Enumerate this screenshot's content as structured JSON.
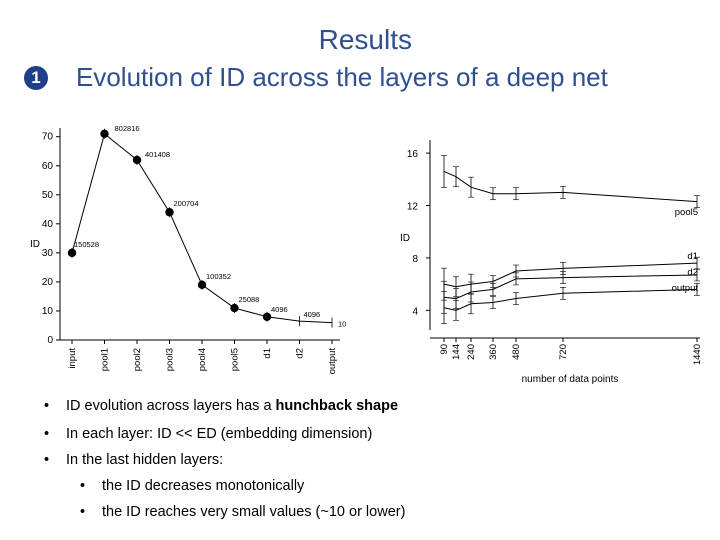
{
  "header": {
    "title": "Results",
    "section_number": "1",
    "subtitle": "Evolution of ID across the layers of a deep net"
  },
  "colors": {
    "title": "#2f4f8f",
    "badge": "#1f3f88"
  },
  "chart_data": [
    {
      "type": "line",
      "xlabel": "",
      "ylabel": "ID",
      "categories": [
        "input",
        "pool1",
        "pool2",
        "pool3",
        "pool4",
        "pool5",
        "d1",
        "d2",
        "output"
      ],
      "values": [
        30,
        71,
        62,
        44,
        19,
        11,
        8,
        6.5,
        6
      ],
      "point_labels": [
        "150528",
        "802816",
        "401408",
        "200704",
        "100352",
        "25088",
        "4096",
        "4096",
        "10"
      ],
      "markers": [
        true,
        true,
        true,
        true,
        true,
        true,
        true,
        false,
        false
      ],
      "yticks": [
        0,
        10,
        20,
        30,
        40,
        50,
        60,
        70
      ],
      "ylim": [
        0,
        73
      ],
      "grid": false
    },
    {
      "type": "line",
      "xlabel": "number of data points",
      "ylabel": "ID",
      "xticks": [
        90,
        144,
        240,
        360,
        480,
        720,
        1440
      ],
      "yticks": [
        4,
        8,
        12,
        16
      ],
      "ylim": [
        2.5,
        17
      ],
      "grid": false,
      "series": [
        {
          "name": "pool5",
          "x": [
            90,
            144,
            240,
            360,
            480,
            720,
            1440
          ],
          "y": [
            14.6,
            14.2,
            13.4,
            12.9,
            12.9,
            13.0,
            12.3
          ]
        },
        {
          "name": "d1",
          "x": [
            90,
            144,
            240,
            360,
            480,
            720,
            1440
          ],
          "y": [
            6.0,
            5.8,
            6.0,
            6.2,
            7.0,
            7.2,
            7.6
          ]
        },
        {
          "name": "d2",
          "x": [
            90,
            144,
            240,
            360,
            480,
            720,
            1440
          ],
          "y": [
            5.0,
            4.9,
            5.4,
            5.6,
            6.4,
            6.5,
            6.7
          ]
        },
        {
          "name": "output",
          "x": [
            90,
            144,
            240,
            360,
            480,
            720,
            1440
          ],
          "y": [
            4.2,
            4.0,
            4.5,
            4.6,
            4.9,
            5.3,
            5.6
          ]
        }
      ]
    }
  ],
  "bullets": [
    {
      "text_prefix": "ID evolution across layers has a ",
      "text_bold": "hunchback shape",
      "level": 1
    },
    {
      "text_prefix": "In each layer: ID << ED (embedding dimension)",
      "text_bold": "",
      "level": 1
    },
    {
      "text_prefix": "In the last hidden layers:",
      "text_bold": "",
      "level": 1
    },
    {
      "text_prefix": "the ID decreases monotonically",
      "text_bold": "",
      "level": 2
    },
    {
      "text_prefix": "the ID reaches very small values (~10 or lower)",
      "text_bold": "",
      "level": 2
    }
  ]
}
